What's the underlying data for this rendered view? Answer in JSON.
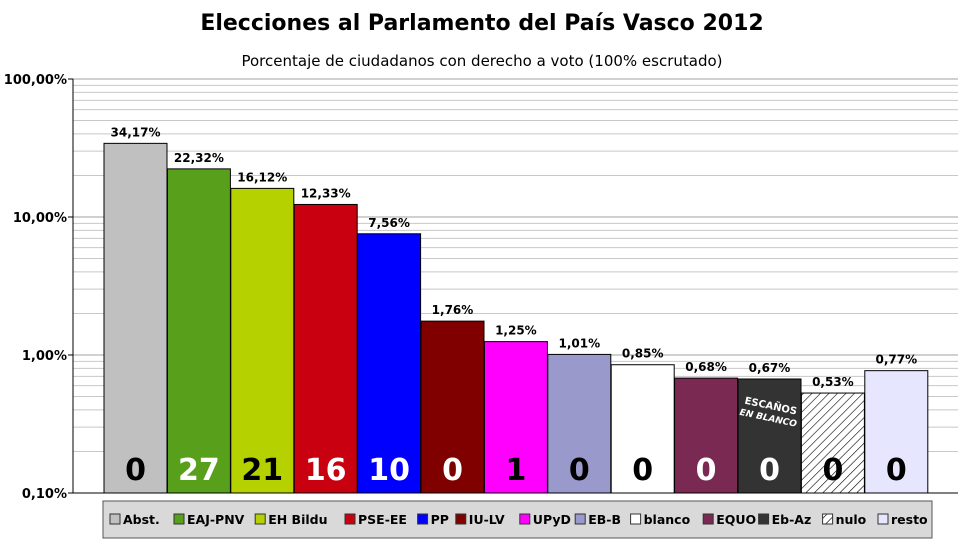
{
  "chart_data": {
    "type": "bar",
    "title": "Elecciones al Parlamento del País Vasco 2012",
    "subtitle": "Porcentaje de ciudadanos con derecho a voto (100% escrutado)",
    "yscale": "log",
    "ylim": [
      0.1,
      100
    ],
    "yticks": [
      {
        "value": 0.1,
        "label": "0,10%"
      },
      {
        "value": 1,
        "label": "1,00%"
      },
      {
        "value": 10,
        "label": "10,00%"
      },
      {
        "value": 100,
        "label": "100,00%"
      }
    ],
    "grid": true,
    "legend_position": "bottom",
    "categories": [
      "Abst.",
      "EAJ-PNV",
      "EH Bildu",
      "PSE-EE",
      "PP",
      "IU-LV",
      "UPyD",
      "EB-B",
      "blanco",
      "EQUO",
      "Eb-Az",
      "nulo",
      "resto"
    ],
    "values": [
      34.17,
      22.32,
      16.12,
      12.33,
      7.56,
      1.76,
      1.25,
      1.01,
      0.85,
      0.68,
      0.67,
      0.53,
      0.77
    ],
    "value_labels": [
      "34,17%",
      "22,32%",
      "16,12%",
      "12,33%",
      "7,56%",
      "1,76%",
      "1,25%",
      "1,01%",
      "0,85%",
      "0,68%",
      "0,67%",
      "0,53%",
      "0,77%"
    ],
    "seats": [
      "0",
      "27",
      "21",
      "16",
      "10",
      "0",
      "1",
      "0",
      "0",
      "0",
      "0",
      "0",
      "0"
    ],
    "colors": [
      "#c0c0c0",
      "#58a01c",
      "#b5d200",
      "#c8000f",
      "#0000ff",
      "#800000",
      "#ff00ff",
      "#9999cc",
      "#ffffff",
      "#7a2a52",
      "#333333",
      "hatch",
      "#e6e6ff"
    ],
    "seat_text_colors": [
      "#000000",
      "#ffffff",
      "#000000",
      "#ffffff",
      "#ffffff",
      "#ffffff",
      "#000000",
      "#000000",
      "#000000",
      "#ffffff",
      "#ffffff",
      "#000000",
      "#000000"
    ],
    "annotation": "ESCAÑOS EN BLANCO"
  }
}
